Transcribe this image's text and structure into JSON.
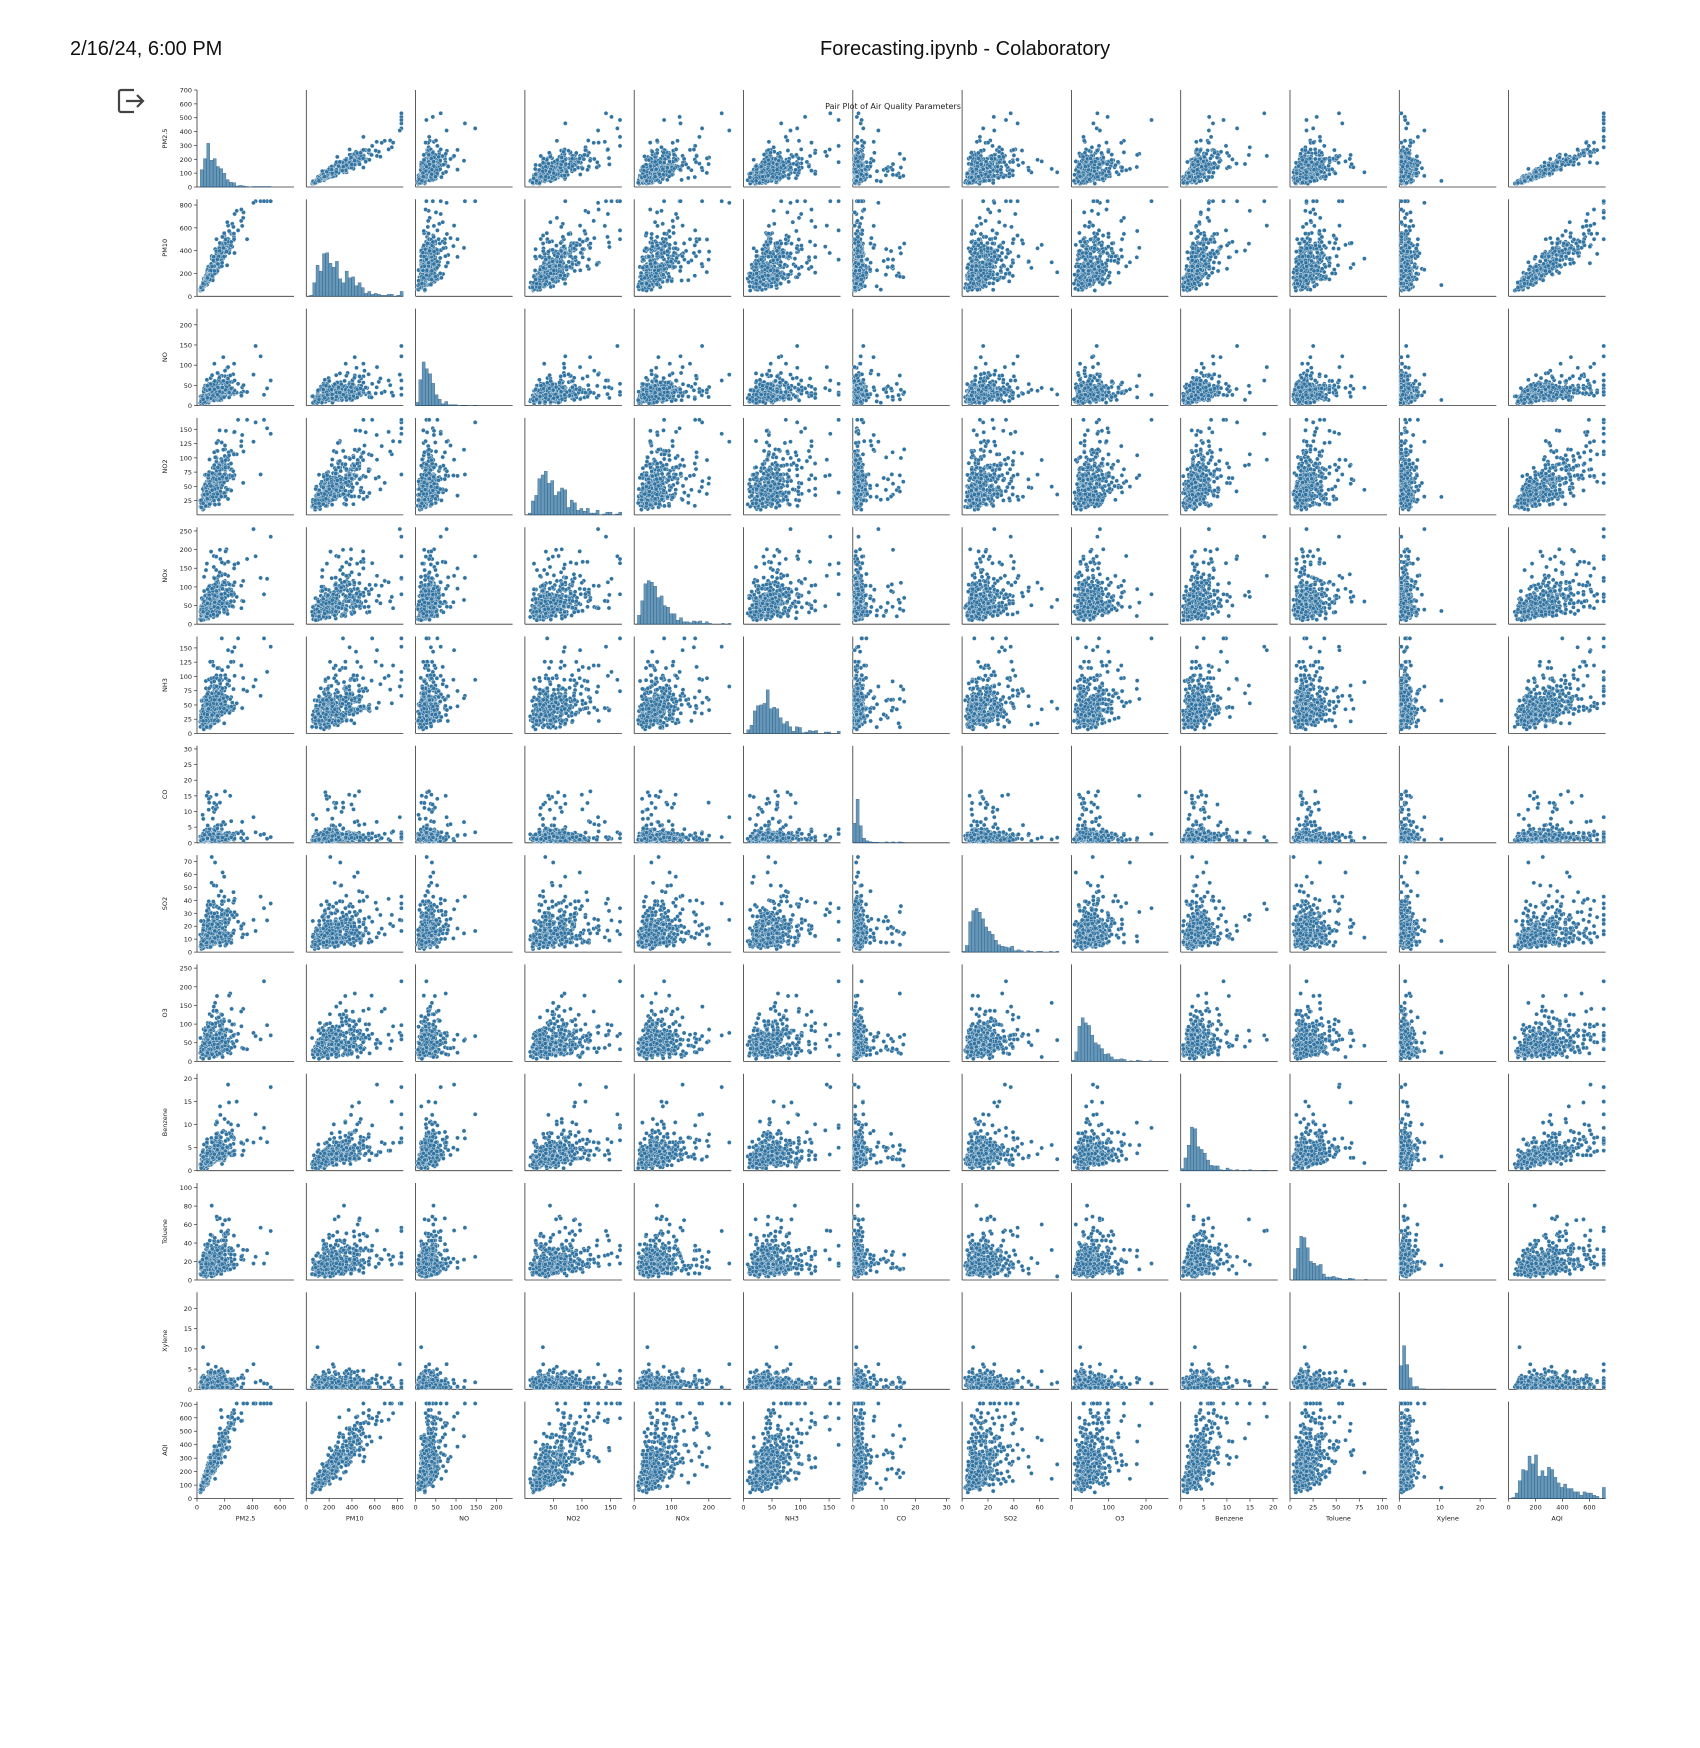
{
  "page": {
    "timestamp": "2/16/24, 6:00 PM",
    "title": "Forecasting.ipynb - Colaboratory"
  },
  "icons": {
    "output": "output-exit-icon"
  },
  "colors": {
    "marker": "#3274a1",
    "marker_edge": "#ffffff",
    "axis": "#333333",
    "text": "#222222"
  },
  "chart_data": {
    "type": "scatter",
    "subtype": "pairplot",
    "title": "Pair Plot of Air Quality Parameters",
    "grid": false,
    "diagonal": "histogram",
    "variables": [
      {
        "name": "PM2.5",
        "range": [
          0,
          700
        ],
        "ticks": [
          0,
          200,
          400,
          600
        ]
      },
      {
        "name": "PM10",
        "range": [
          0,
          850
        ],
        "ticks": [
          0,
          200,
          400,
          600,
          800
        ]
      },
      {
        "name": "NO",
        "range": [
          0,
          240
        ],
        "ticks": [
          0,
          50,
          100,
          150,
          200
        ]
      },
      {
        "name": "NO2",
        "range": [
          0,
          170
        ],
        "ticks": [
          50,
          100,
          150
        ]
      },
      {
        "name": "NOx",
        "range": [
          0,
          260
        ],
        "ticks": [
          0,
          100,
          200
        ]
      },
      {
        "name": "NH3",
        "range": [
          0,
          170
        ],
        "ticks": [
          0,
          50,
          100,
          150
        ]
      },
      {
        "name": "CO",
        "range": [
          0,
          31
        ],
        "ticks": [
          0,
          10,
          20,
          30
        ]
      },
      {
        "name": "SO2",
        "range": [
          0,
          75
        ],
        "ticks": [
          0,
          20,
          40,
          60
        ]
      },
      {
        "name": "O3",
        "range": [
          0,
          260
        ],
        "ticks": [
          0,
          100,
          200
        ]
      },
      {
        "name": "Benzene",
        "range": [
          0,
          21
        ],
        "ticks": [
          0,
          5,
          10,
          15,
          20
        ]
      },
      {
        "name": "Toluene",
        "range": [
          0,
          105
        ],
        "ticks": [
          0,
          25,
          50,
          75,
          100
        ]
      },
      {
        "name": "Xylene",
        "range": [
          0,
          24
        ],
        "ticks": [
          0,
          10,
          20
        ]
      },
      {
        "name": "AQI",
        "range": [
          0,
          720
        ],
        "ticks": [
          0,
          200,
          400,
          600
        ]
      }
    ],
    "y_ticks": [
      [
        0,
        100,
        200,
        300,
        400,
        500,
        600,
        700
      ],
      [
        0,
        200,
        400,
        600,
        800
      ],
      [
        0,
        50,
        100,
        150,
        200
      ],
      [
        25,
        50,
        75,
        100,
        125,
        150
      ],
      [
        0,
        50,
        100,
        150,
        200,
        250
      ],
      [
        0,
        25,
        50,
        75,
        100,
        125,
        150
      ],
      [
        0,
        5,
        10,
        15,
        20,
        25,
        30
      ],
      [
        0,
        10,
        20,
        30,
        40,
        50,
        60,
        70
      ],
      [
        0,
        50,
        100,
        150,
        200,
        250
      ],
      [
        0,
        5,
        10,
        15,
        20
      ],
      [
        0,
        20,
        40,
        60,
        80,
        100
      ],
      [
        0,
        5,
        10,
        15,
        20
      ],
      [
        0,
        100,
        200,
        300,
        400,
        500,
        600,
        700
      ]
    ]
  }
}
